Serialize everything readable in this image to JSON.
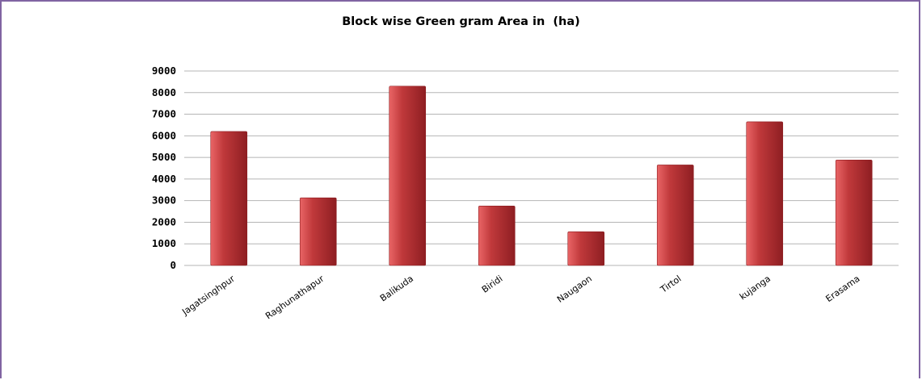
{
  "chart_data": {
    "type": "bar",
    "title": "Block wise Green gram Area in  (ha)",
    "xlabel": "",
    "ylabel": "",
    "categories": [
      "Jagatsinghpur",
      "Raghunathapur",
      "Balikuda",
      "Biridi",
      "Naugaon",
      "Tirtol",
      "kujanga",
      "Erasama"
    ],
    "values": [
      6200,
      3130,
      8300,
      2750,
      1560,
      4650,
      6650,
      4880
    ],
    "ylim": [
      0,
      9000
    ],
    "yticks": [
      "0",
      "1000",
      "2000",
      "3000",
      "4000",
      "5000",
      "6000",
      "7000",
      "8000",
      "9000"
    ],
    "grid": true,
    "legend": "none",
    "bar_color": "#c0393b",
    "bar_dark_color": "#8e1e22",
    "bar_light_color": "#e96566",
    "gridline_color": "#b5b5b5",
    "frame_color": "#8064a2"
  }
}
